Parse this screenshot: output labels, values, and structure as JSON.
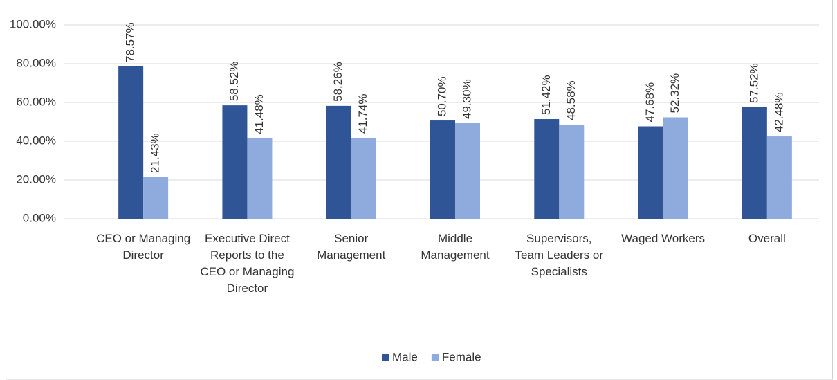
{
  "chart_data": {
    "type": "bar",
    "categories": [
      "CEO or Managing Director",
      "Executive Direct Reports to the CEO or Managing Director",
      "Senior Management",
      "Middle Management",
      "Supervisors, Team Leaders or Specialists",
      "Waged Workers",
      "Overall"
    ],
    "series": [
      {
        "name": "Male",
        "color": "#2f5597",
        "values": [
          78.57,
          58.52,
          58.26,
          50.7,
          51.42,
          47.68,
          57.52
        ],
        "value_labels": [
          "78.57%",
          "58.52%",
          "58.26%",
          "50.70%",
          "51.42%",
          "47.68%",
          "57.52%"
        ]
      },
      {
        "name": "Female",
        "color": "#8faadc",
        "values": [
          21.43,
          41.48,
          41.74,
          49.3,
          48.58,
          52.32,
          42.48
        ],
        "value_labels": [
          "21.43%",
          "41.48%",
          "41.74%",
          "49.30%",
          "48.58%",
          "52.32%",
          "42.48%"
        ]
      }
    ],
    "ylim": [
      0,
      100
    ],
    "yticks": [
      {
        "value": 0,
        "label": "0.00%"
      },
      {
        "value": 20,
        "label": "20.00%"
      },
      {
        "value": 40,
        "label": "40.00%"
      },
      {
        "value": 60,
        "label": "60.00%"
      },
      {
        "value": 80,
        "label": "80.00%"
      },
      {
        "value": 100,
        "label": "100.00%"
      }
    ],
    "grid": true,
    "legend": "bottom"
  }
}
